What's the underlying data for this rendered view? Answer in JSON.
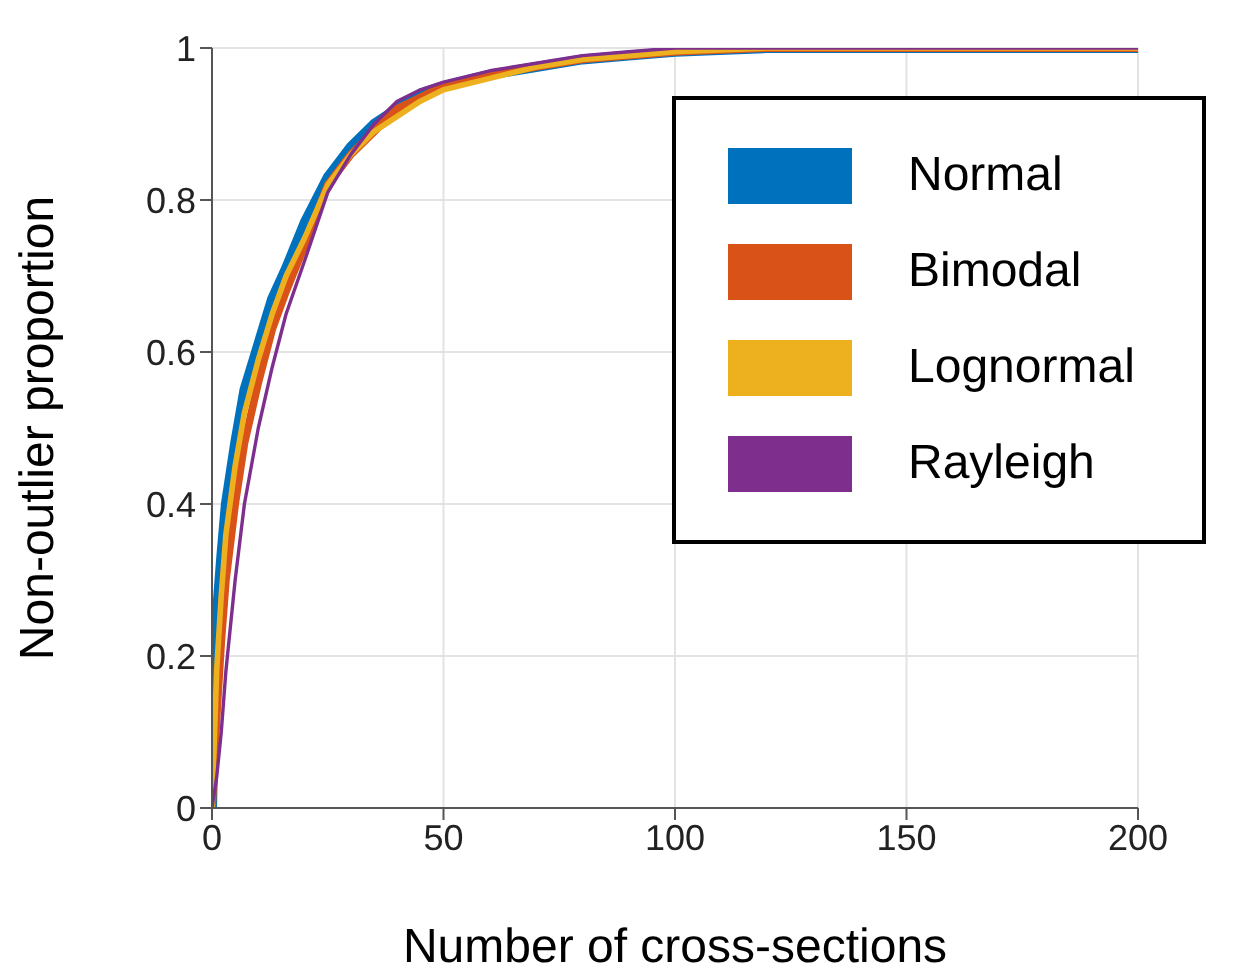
{
  "chart_data": {
    "type": "line",
    "xlabel": "Number of cross-sections",
    "ylabel": "Non-outlier proportion",
    "x": [
      0,
      1,
      2,
      3,
      5,
      7,
      10,
      13,
      16,
      20,
      25,
      30,
      35,
      40,
      45,
      50,
      60,
      70,
      80,
      90,
      100,
      120,
      150,
      200
    ],
    "series": [
      {
        "name": "Normal",
        "color": "#0072bd",
        "values": [
          0,
          0.25,
          0.33,
          0.4,
          0.48,
          0.55,
          0.61,
          0.67,
          0.71,
          0.77,
          0.83,
          0.87,
          0.9,
          0.92,
          0.94,
          0.95,
          0.965,
          0.975,
          0.985,
          0.99,
          0.995,
          1,
          1,
          1
        ]
      },
      {
        "name": "Bimodal",
        "color": "#d95319",
        "values": [
          0,
          0.12,
          0.22,
          0.3,
          0.4,
          0.48,
          0.56,
          0.63,
          0.68,
          0.74,
          0.82,
          0.86,
          0.89,
          0.92,
          0.935,
          0.95,
          0.965,
          0.975,
          0.985,
          0.99,
          0.995,
          1,
          1,
          1
        ]
      },
      {
        "name": "Lognormal",
        "color": "#edb120",
        "values": [
          0,
          0.18,
          0.28,
          0.36,
          0.45,
          0.52,
          0.59,
          0.65,
          0.7,
          0.75,
          0.82,
          0.86,
          0.89,
          0.91,
          0.93,
          0.945,
          0.96,
          0.975,
          0.985,
          0.99,
          0.995,
          1,
          1,
          1
        ]
      },
      {
        "name": "Rayleigh",
        "color": "#7e2f8e",
        "values": [
          0,
          0.04,
          0.1,
          0.18,
          0.3,
          0.4,
          0.5,
          0.58,
          0.65,
          0.72,
          0.81,
          0.86,
          0.9,
          0.93,
          0.945,
          0.955,
          0.97,
          0.98,
          0.99,
          0.995,
          1,
          1,
          1,
          1
        ]
      }
    ],
    "xlim": [
      0,
      200
    ],
    "xticks": [
      0,
      50,
      100,
      150,
      200
    ],
    "ylim": [
      0,
      1
    ],
    "yticks": [
      0,
      0.2,
      0.4,
      0.6,
      0.8,
      1
    ],
    "grid": true,
    "legend": "top right",
    "marker": "none",
    "line_style": "solid"
  }
}
